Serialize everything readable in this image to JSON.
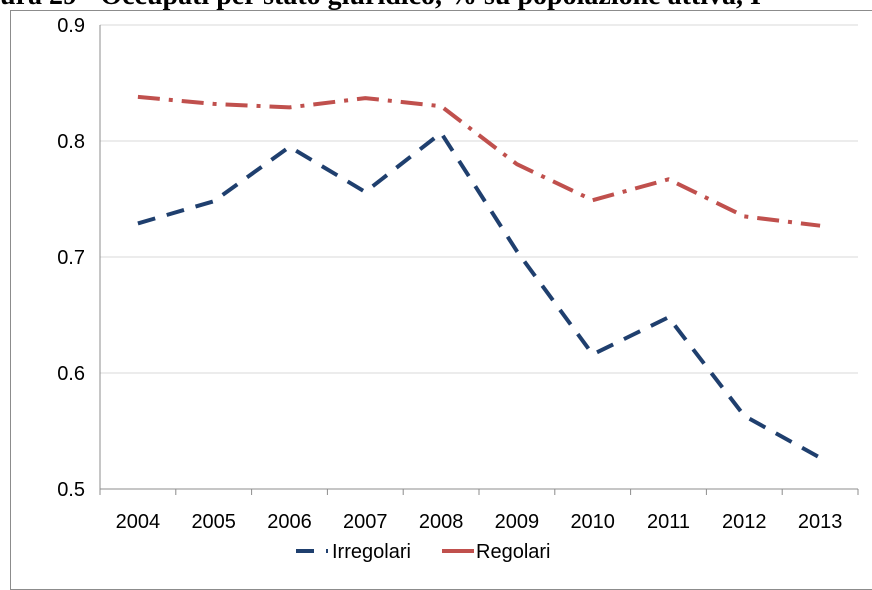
{
  "title": "ura 29 - Occupati per stato giuridico, % su popolazione attiva, I",
  "chart_data": {
    "type": "line",
    "categories": [
      "2004",
      "2005",
      "2006",
      "2007",
      "2008",
      "2009",
      "2010",
      "2011",
      "2012",
      "2013"
    ],
    "ylim": [
      0.5,
      0.9
    ],
    "yticks": [
      "0.5",
      "0.6",
      "0.7",
      "0.8",
      "0.9"
    ],
    "grid": true,
    "legend": "bottom",
    "series": [
      {
        "name": "Irregolari",
        "color": "#1f3f6e",
        "style": "dashed",
        "values": [
          0.729,
          0.748,
          0.795,
          0.756,
          0.807,
          0.705,
          0.616,
          0.648,
          0.563,
          0.527
        ]
      },
      {
        "name": "Regolari",
        "color": "#c0504d",
        "style": "dash-dot",
        "values": [
          0.838,
          0.832,
          0.829,
          0.837,
          0.83,
          0.78,
          0.749,
          0.767,
          0.735,
          0.727
        ]
      }
    ]
  }
}
